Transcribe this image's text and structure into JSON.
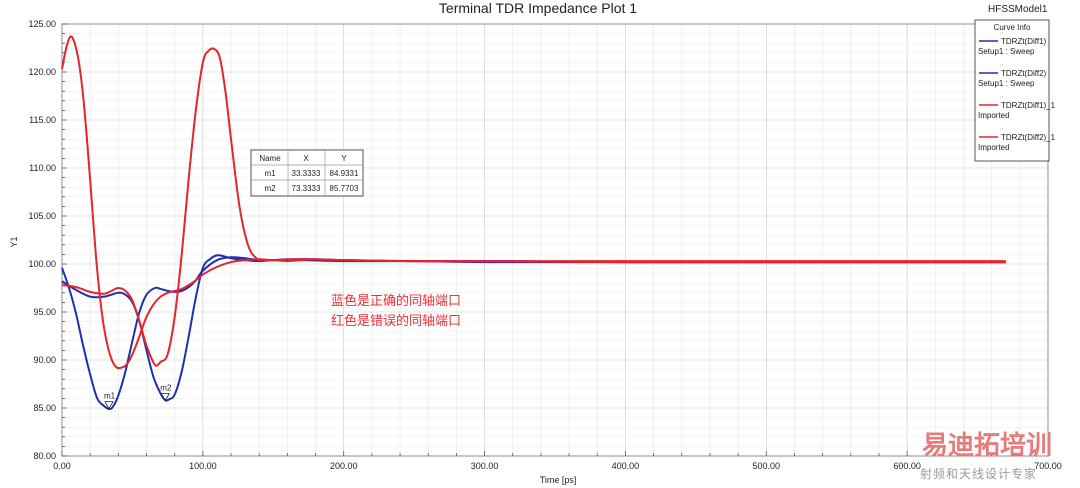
{
  "app": {
    "model_label": "HFSSModel1"
  },
  "chart_data": {
    "type": "line",
    "title": "Terminal TDR Impedance Plot 1",
    "xlabel": "Time [ps]",
    "ylabel": "Y1",
    "xlim": [
      0,
      700
    ],
    "ylim": [
      80,
      125
    ],
    "x_ticks": [
      "0.00",
      "100.00",
      "200.00",
      "300.00",
      "400.00",
      "500.00",
      "600.00",
      "700.00"
    ],
    "y_ticks": [
      "80.00",
      "85.00",
      "90.00",
      "95.00",
      "100.00",
      "105.00",
      "110.00",
      "115.00",
      "120.00",
      "125.00"
    ],
    "grid": true,
    "legend": {
      "title": "Curve Info",
      "position": "top-right",
      "entries": [
        {
          "name": "TDRZt(Diff1)",
          "sub": "Setup1 : Sweep",
          "color": "#1f2fb0"
        },
        {
          "name": "TDRZt(Diff2)",
          "sub": "Setup1 : Sweep",
          "color": "#1f2fb0"
        },
        {
          "name": "TDRZt(Diff1)_1",
          "sub": "Imported",
          "color": "#e8232a"
        },
        {
          "name": "TDRZt(Diff2)_1",
          "sub": "Imported",
          "color": "#e8232a"
        }
      ]
    },
    "series": [
      {
        "name": "TDRZt(Diff1)",
        "color": "#1f2fb0",
        "x": [
          0,
          5,
          10,
          15,
          20,
          25,
          30,
          33.33,
          36,
          40,
          45,
          50,
          55,
          60,
          66,
          70,
          75,
          80,
          85,
          90,
          95,
          100,
          110,
          120,
          130,
          140,
          150,
          160,
          180,
          200,
          250,
          300,
          400,
          500,
          600,
          670
        ],
        "y": [
          99.6,
          97.5,
          94.8,
          91.5,
          88.5,
          86.0,
          85.2,
          84.9,
          85.1,
          86.3,
          88.8,
          92.0,
          95.0,
          96.8,
          97.5,
          97.4,
          97.2,
          97.1,
          97.2,
          97.6,
          98.3,
          99.3,
          100.4,
          100.7,
          100.6,
          100.4,
          100.4,
          100.5,
          100.5,
          100.4,
          100.3,
          100.3,
          100.2,
          100.2,
          100.2,
          100.2
        ]
      },
      {
        "name": "TDRZt(Diff2)",
        "color": "#1f2fb0",
        "x": [
          0,
          10,
          20,
          30,
          40,
          45,
          50,
          55,
          60,
          65,
          70,
          73.33,
          76,
          80,
          85,
          90,
          95,
          100,
          105,
          110,
          115,
          120,
          130,
          140,
          150,
          170,
          200,
          250,
          300,
          400,
          500,
          600,
          670
        ],
        "y": [
          98.2,
          97.3,
          96.6,
          96.6,
          97.0,
          96.8,
          96.0,
          94.0,
          91.0,
          88.2,
          86.5,
          85.8,
          85.9,
          86.4,
          88.8,
          92.5,
          96.5,
          99.6,
          100.5,
          100.9,
          100.8,
          100.6,
          100.4,
          100.3,
          100.4,
          100.4,
          100.3,
          100.3,
          100.2,
          100.2,
          100.2,
          100.2,
          100.2
        ]
      },
      {
        "name": "TDRZt(Diff1)_1",
        "color": "#e8232a",
        "x": [
          0,
          3,
          6,
          9,
          12,
          15,
          18,
          21,
          24,
          27,
          30,
          33,
          36,
          39,
          42,
          45,
          48,
          52,
          56,
          60,
          65,
          70,
          75,
          80,
          85,
          90,
          95,
          100,
          110,
          120,
          130,
          140,
          150,
          170,
          200,
          250,
          300,
          400,
          500,
          600,
          670
        ],
        "y": [
          120.3,
          122.5,
          123.7,
          123.0,
          121.0,
          117.5,
          112.5,
          106.8,
          101.0,
          96.5,
          93.2,
          91.1,
          89.8,
          89.2,
          89.2,
          89.4,
          90.0,
          91.3,
          92.9,
          94.5,
          95.8,
          96.6,
          97.0,
          97.2,
          97.4,
          97.8,
          98.3,
          98.9,
          99.7,
          100.2,
          100.4,
          100.5,
          100.4,
          100.5,
          100.4,
          100.3,
          100.3,
          100.2,
          100.2,
          100.2,
          100.2
        ]
      },
      {
        "name": "TDRZt(Diff2)_1",
        "color": "#e8232a",
        "x": [
          0,
          10,
          20,
          30,
          35,
          40,
          45,
          50,
          55,
          60,
          66,
          70,
          75,
          80,
          85,
          90,
          95,
          100,
          104,
          108,
          112,
          116,
          120,
          126,
          132,
          138,
          144,
          150,
          160,
          170,
          180,
          200,
          250,
          300,
          400,
          500,
          600,
          670
        ],
        "y": [
          97.8,
          97.6,
          97.1,
          96.9,
          97.2,
          97.5,
          97.2,
          96.2,
          94.0,
          91.5,
          89.5,
          89.8,
          90.6,
          94.5,
          101.0,
          109.0,
          116.0,
          121.0,
          122.2,
          122.4,
          121.5,
          118.0,
          113.0,
          106.0,
          102.0,
          100.6,
          100.4,
          100.4,
          100.3,
          100.4,
          100.5,
          100.4,
          100.3,
          100.3,
          100.3,
          100.3,
          100.3,
          100.3
        ]
      }
    ],
    "markers": [
      {
        "name": "m1",
        "x": 33.3333,
        "y": 84.9331,
        "x_label": "33.3333",
        "y_label": "84.9331"
      },
      {
        "name": "m2",
        "x": 73.3333,
        "y": 85.7703,
        "x_label": "73.3333",
        "y_label": "85.7703"
      }
    ],
    "marker_table": {
      "headers": [
        "Name",
        "X",
        "Y"
      ]
    },
    "annotations": [
      "蓝色是正确的同轴端口",
      "红色是错误的同轴端口"
    ]
  },
  "watermark": {
    "main": "易迪拓培训",
    "sub": "射频和天线设计专家"
  }
}
